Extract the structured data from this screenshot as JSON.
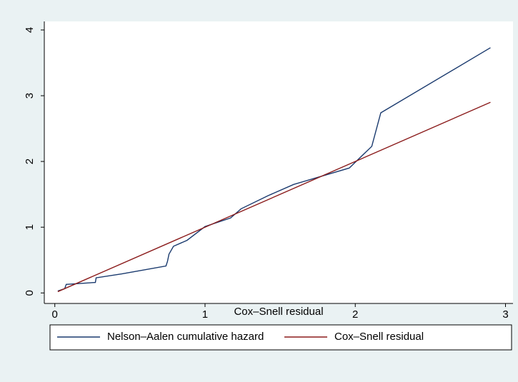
{
  "chart_data": {
    "type": "line",
    "x_label": "Cox–Snell residual",
    "xlim": [
      -0.07,
      3.05
    ],
    "xticks": [
      0,
      1,
      2,
      3
    ],
    "ylim": [
      -0.16,
      4.13
    ],
    "yticks": [
      0,
      1,
      2,
      3,
      4
    ],
    "legend": "bottom",
    "series": [
      {
        "name": "Nelson–Aalen cumulative hazard",
        "color": "#1a3a6e",
        "x": [
          0.02,
          0.066,
          0.076,
          0.27,
          0.275,
          0.446,
          0.74,
          0.75,
          0.76,
          0.79,
          0.88,
          1.0,
          1.17,
          1.24,
          1.42,
          1.59,
          1.96,
          2.11,
          2.17,
          2.9
        ],
        "values": [
          0.03,
          0.065,
          0.13,
          0.16,
          0.23,
          0.29,
          0.41,
          0.48,
          0.59,
          0.71,
          0.8,
          1.01,
          1.14,
          1.28,
          1.48,
          1.65,
          1.9,
          2.23,
          2.74,
          3.73
        ]
      },
      {
        "name": "Cox–Snell residual",
        "color": "#8b1c1c",
        "x": [
          0.02,
          2.9
        ],
        "values": [
          0.02,
          2.9
        ]
      }
    ]
  }
}
